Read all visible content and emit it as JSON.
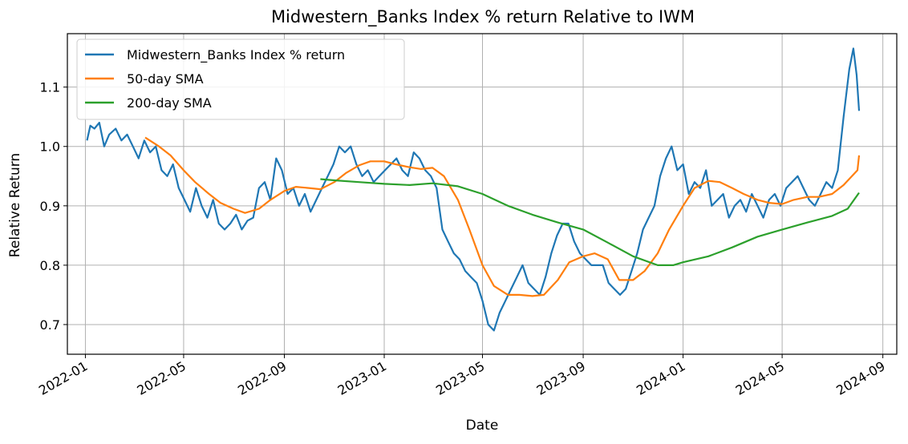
{
  "chart_data": {
    "type": "line",
    "title": "Midwestern_Banks Index % return Relative to IWM",
    "xlabel": "Date",
    "ylabel": "Relative Return",
    "x_ticks": [
      "2022-01",
      "2022-05",
      "2022-09",
      "2023-01",
      "2023-05",
      "2023-09",
      "2024-01",
      "2024-05",
      "2024-09"
    ],
    "y_ticks": [
      "0.7",
      "0.8",
      "0.9",
      "1.0",
      "1.1"
    ],
    "xlim": [
      "2021-12-10",
      "2024-09-18"
    ],
    "ylim": [
      0.65,
      1.19
    ],
    "grid": true,
    "legend_position": "top-left",
    "series": [
      {
        "name": "Midwestern_Banks Index % return",
        "color": "#1f77b4",
        "points": [
          [
            "2022-01-03",
            1.01
          ],
          [
            "2022-01-07",
            1.035
          ],
          [
            "2022-01-12",
            1.03
          ],
          [
            "2022-01-18",
            1.04
          ],
          [
            "2022-01-24",
            1.0
          ],
          [
            "2022-01-30",
            1.02
          ],
          [
            "2022-02-07",
            1.03
          ],
          [
            "2022-02-14",
            1.01
          ],
          [
            "2022-02-21",
            1.02
          ],
          [
            "2022-02-28",
            1.0
          ],
          [
            "2022-03-07",
            0.98
          ],
          [
            "2022-03-14",
            1.01
          ],
          [
            "2022-03-21",
            0.99
          ],
          [
            "2022-03-28",
            1.0
          ],
          [
            "2022-04-04",
            0.96
          ],
          [
            "2022-04-11",
            0.95
          ],
          [
            "2022-04-18",
            0.97
          ],
          [
            "2022-04-25",
            0.93
          ],
          [
            "2022-05-02",
            0.91
          ],
          [
            "2022-05-09",
            0.89
          ],
          [
            "2022-05-16",
            0.93
          ],
          [
            "2022-05-23",
            0.9
          ],
          [
            "2022-05-30",
            0.88
          ],
          [
            "2022-06-06",
            0.91
          ],
          [
            "2022-06-13",
            0.87
          ],
          [
            "2022-06-20",
            0.86
          ],
          [
            "2022-06-27",
            0.87
          ],
          [
            "2022-07-04",
            0.885
          ],
          [
            "2022-07-11",
            0.86
          ],
          [
            "2022-07-18",
            0.875
          ],
          [
            "2022-07-25",
            0.88
          ],
          [
            "2022-08-01",
            0.93
          ],
          [
            "2022-08-08",
            0.94
          ],
          [
            "2022-08-15",
            0.91
          ],
          [
            "2022-08-22",
            0.98
          ],
          [
            "2022-08-29",
            0.96
          ],
          [
            "2022-09-05",
            0.92
          ],
          [
            "2022-09-12",
            0.93
          ],
          [
            "2022-09-19",
            0.9
          ],
          [
            "2022-09-26",
            0.92
          ],
          [
            "2022-10-03",
            0.89
          ],
          [
            "2022-10-10",
            0.91
          ],
          [
            "2022-10-17",
            0.93
          ],
          [
            "2022-10-24",
            0.95
          ],
          [
            "2022-10-31",
            0.97
          ],
          [
            "2022-11-07",
            1.0
          ],
          [
            "2022-11-14",
            0.99
          ],
          [
            "2022-11-21",
            1.0
          ],
          [
            "2022-11-28",
            0.97
          ],
          [
            "2022-12-05",
            0.95
          ],
          [
            "2022-12-12",
            0.96
          ],
          [
            "2022-12-19",
            0.94
          ],
          [
            "2022-12-26",
            0.95
          ],
          [
            "2023-01-02",
            0.96
          ],
          [
            "2023-01-09",
            0.97
          ],
          [
            "2023-01-16",
            0.98
          ],
          [
            "2023-01-23",
            0.96
          ],
          [
            "2023-01-30",
            0.95
          ],
          [
            "2023-02-06",
            0.99
          ],
          [
            "2023-02-13",
            0.98
          ],
          [
            "2023-02-20",
            0.96
          ],
          [
            "2023-02-27",
            0.95
          ],
          [
            "2023-03-06",
            0.93
          ],
          [
            "2023-03-13",
            0.86
          ],
          [
            "2023-03-20",
            0.84
          ],
          [
            "2023-03-27",
            0.82
          ],
          [
            "2023-04-03",
            0.81
          ],
          [
            "2023-04-10",
            0.79
          ],
          [
            "2023-04-17",
            0.78
          ],
          [
            "2023-04-24",
            0.77
          ],
          [
            "2023-05-01",
            0.74
          ],
          [
            "2023-05-08",
            0.7
          ],
          [
            "2023-05-15",
            0.69
          ],
          [
            "2023-05-22",
            0.72
          ],
          [
            "2023-05-29",
            0.74
          ],
          [
            "2023-06-05",
            0.76
          ],
          [
            "2023-06-12",
            0.78
          ],
          [
            "2023-06-19",
            0.8
          ],
          [
            "2023-06-26",
            0.77
          ],
          [
            "2023-07-03",
            0.76
          ],
          [
            "2023-07-10",
            0.75
          ],
          [
            "2023-07-17",
            0.78
          ],
          [
            "2023-07-24",
            0.82
          ],
          [
            "2023-07-31",
            0.85
          ],
          [
            "2023-08-07",
            0.87
          ],
          [
            "2023-08-14",
            0.87
          ],
          [
            "2023-08-21",
            0.84
          ],
          [
            "2023-08-28",
            0.82
          ],
          [
            "2023-09-04",
            0.81
          ],
          [
            "2023-09-11",
            0.8
          ],
          [
            "2023-09-18",
            0.8
          ],
          [
            "2023-09-25",
            0.8
          ],
          [
            "2023-10-02",
            0.77
          ],
          [
            "2023-10-09",
            0.76
          ],
          [
            "2023-10-16",
            0.75
          ],
          [
            "2023-10-23",
            0.76
          ],
          [
            "2023-10-30",
            0.79
          ],
          [
            "2023-11-06",
            0.82
          ],
          [
            "2023-11-13",
            0.86
          ],
          [
            "2023-11-20",
            0.88
          ],
          [
            "2023-11-27",
            0.9
          ],
          [
            "2023-12-04",
            0.95
          ],
          [
            "2023-12-11",
            0.98
          ],
          [
            "2023-12-18",
            1.0
          ],
          [
            "2023-12-25",
            0.96
          ],
          [
            "2024-01-01",
            0.97
          ],
          [
            "2024-01-08",
            0.92
          ],
          [
            "2024-01-15",
            0.94
          ],
          [
            "2024-01-22",
            0.93
          ],
          [
            "2024-01-29",
            0.96
          ],
          [
            "2024-02-05",
            0.9
          ],
          [
            "2024-02-12",
            0.91
          ],
          [
            "2024-02-19",
            0.92
          ],
          [
            "2024-02-26",
            0.88
          ],
          [
            "2024-03-04",
            0.9
          ],
          [
            "2024-03-11",
            0.91
          ],
          [
            "2024-03-18",
            0.89
          ],
          [
            "2024-03-25",
            0.92
          ],
          [
            "2024-04-01",
            0.9
          ],
          [
            "2024-04-08",
            0.88
          ],
          [
            "2024-04-15",
            0.91
          ],
          [
            "2024-04-22",
            0.92
          ],
          [
            "2024-04-29",
            0.9
          ],
          [
            "2024-05-06",
            0.93
          ],
          [
            "2024-05-13",
            0.94
          ],
          [
            "2024-05-20",
            0.95
          ],
          [
            "2024-05-27",
            0.93
          ],
          [
            "2024-06-03",
            0.91
          ],
          [
            "2024-06-10",
            0.9
          ],
          [
            "2024-06-17",
            0.92
          ],
          [
            "2024-06-24",
            0.94
          ],
          [
            "2024-07-01",
            0.93
          ],
          [
            "2024-07-08",
            0.96
          ],
          [
            "2024-07-15",
            1.05
          ],
          [
            "2024-07-22",
            1.13
          ],
          [
            "2024-07-27",
            1.165
          ],
          [
            "2024-07-31",
            1.12
          ],
          [
            "2024-08-03",
            1.06
          ]
        ]
      },
      {
        "name": "50-day SMA",
        "color": "#ff7f0e",
        "points": [
          [
            "2022-03-15",
            1.015
          ],
          [
            "2022-04-01",
            1.0
          ],
          [
            "2022-04-15",
            0.985
          ],
          [
            "2022-05-01",
            0.96
          ],
          [
            "2022-05-15",
            0.94
          ],
          [
            "2022-06-01",
            0.92
          ],
          [
            "2022-06-15",
            0.905
          ],
          [
            "2022-07-01",
            0.895
          ],
          [
            "2022-07-15",
            0.888
          ],
          [
            "2022-08-01",
            0.895
          ],
          [
            "2022-08-15",
            0.91
          ],
          [
            "2022-09-01",
            0.925
          ],
          [
            "2022-09-15",
            0.932
          ],
          [
            "2022-10-01",
            0.93
          ],
          [
            "2022-10-15",
            0.928
          ],
          [
            "2022-11-01",
            0.94
          ],
          [
            "2022-11-15",
            0.955
          ],
          [
            "2022-12-01",
            0.968
          ],
          [
            "2022-12-15",
            0.975
          ],
          [
            "2023-01-01",
            0.975
          ],
          [
            "2023-01-15",
            0.97
          ],
          [
            "2023-02-01",
            0.965
          ],
          [
            "2023-02-15",
            0.962
          ],
          [
            "2023-03-01",
            0.964
          ],
          [
            "2023-03-15",
            0.95
          ],
          [
            "2023-04-01",
            0.91
          ],
          [
            "2023-04-15",
            0.86
          ],
          [
            "2023-05-01",
            0.8
          ],
          [
            "2023-05-15",
            0.765
          ],
          [
            "2023-06-01",
            0.75
          ],
          [
            "2023-06-15",
            0.75
          ],
          [
            "2023-07-01",
            0.748
          ],
          [
            "2023-07-15",
            0.75
          ],
          [
            "2023-08-01",
            0.775
          ],
          [
            "2023-08-15",
            0.805
          ],
          [
            "2023-09-01",
            0.815
          ],
          [
            "2023-09-15",
            0.82
          ],
          [
            "2023-10-01",
            0.81
          ],
          [
            "2023-10-15",
            0.775
          ],
          [
            "2023-11-01",
            0.775
          ],
          [
            "2023-11-15",
            0.79
          ],
          [
            "2023-12-01",
            0.82
          ],
          [
            "2023-12-15",
            0.86
          ],
          [
            "2024-01-01",
            0.9
          ],
          [
            "2024-01-15",
            0.93
          ],
          [
            "2024-02-01",
            0.942
          ],
          [
            "2024-02-15",
            0.94
          ],
          [
            "2024-03-01",
            0.93
          ],
          [
            "2024-03-15",
            0.92
          ],
          [
            "2024-04-01",
            0.91
          ],
          [
            "2024-04-15",
            0.905
          ],
          [
            "2024-05-01",
            0.903
          ],
          [
            "2024-05-15",
            0.91
          ],
          [
            "2024-06-01",
            0.915
          ],
          [
            "2024-06-15",
            0.915
          ],
          [
            "2024-07-01",
            0.92
          ],
          [
            "2024-07-15",
            0.935
          ],
          [
            "2024-08-01",
            0.96
          ],
          [
            "2024-08-03",
            0.985
          ]
        ]
      },
      {
        "name": "200-day SMA",
        "color": "#2ca02c",
        "points": [
          [
            "2022-10-15",
            0.945
          ],
          [
            "2022-11-01",
            0.943
          ],
          [
            "2022-12-01",
            0.94
          ],
          [
            "2023-01-01",
            0.937
          ],
          [
            "2023-02-01",
            0.935
          ],
          [
            "2023-03-01",
            0.938
          ],
          [
            "2023-04-01",
            0.933
          ],
          [
            "2023-05-01",
            0.92
          ],
          [
            "2023-06-01",
            0.9
          ],
          [
            "2023-07-01",
            0.885
          ],
          [
            "2023-08-01",
            0.872
          ],
          [
            "2023-09-01",
            0.86
          ],
          [
            "2023-10-01",
            0.838
          ],
          [
            "2023-11-01",
            0.815
          ],
          [
            "2023-12-01",
            0.8
          ],
          [
            "2023-12-20",
            0.8
          ],
          [
            "2024-01-01",
            0.805
          ],
          [
            "2024-02-01",
            0.815
          ],
          [
            "2024-03-01",
            0.83
          ],
          [
            "2024-04-01",
            0.848
          ],
          [
            "2024-05-01",
            0.86
          ],
          [
            "2024-06-01",
            0.872
          ],
          [
            "2024-07-01",
            0.883
          ],
          [
            "2024-07-20",
            0.895
          ],
          [
            "2024-08-03",
            0.922
          ]
        ]
      }
    ]
  }
}
